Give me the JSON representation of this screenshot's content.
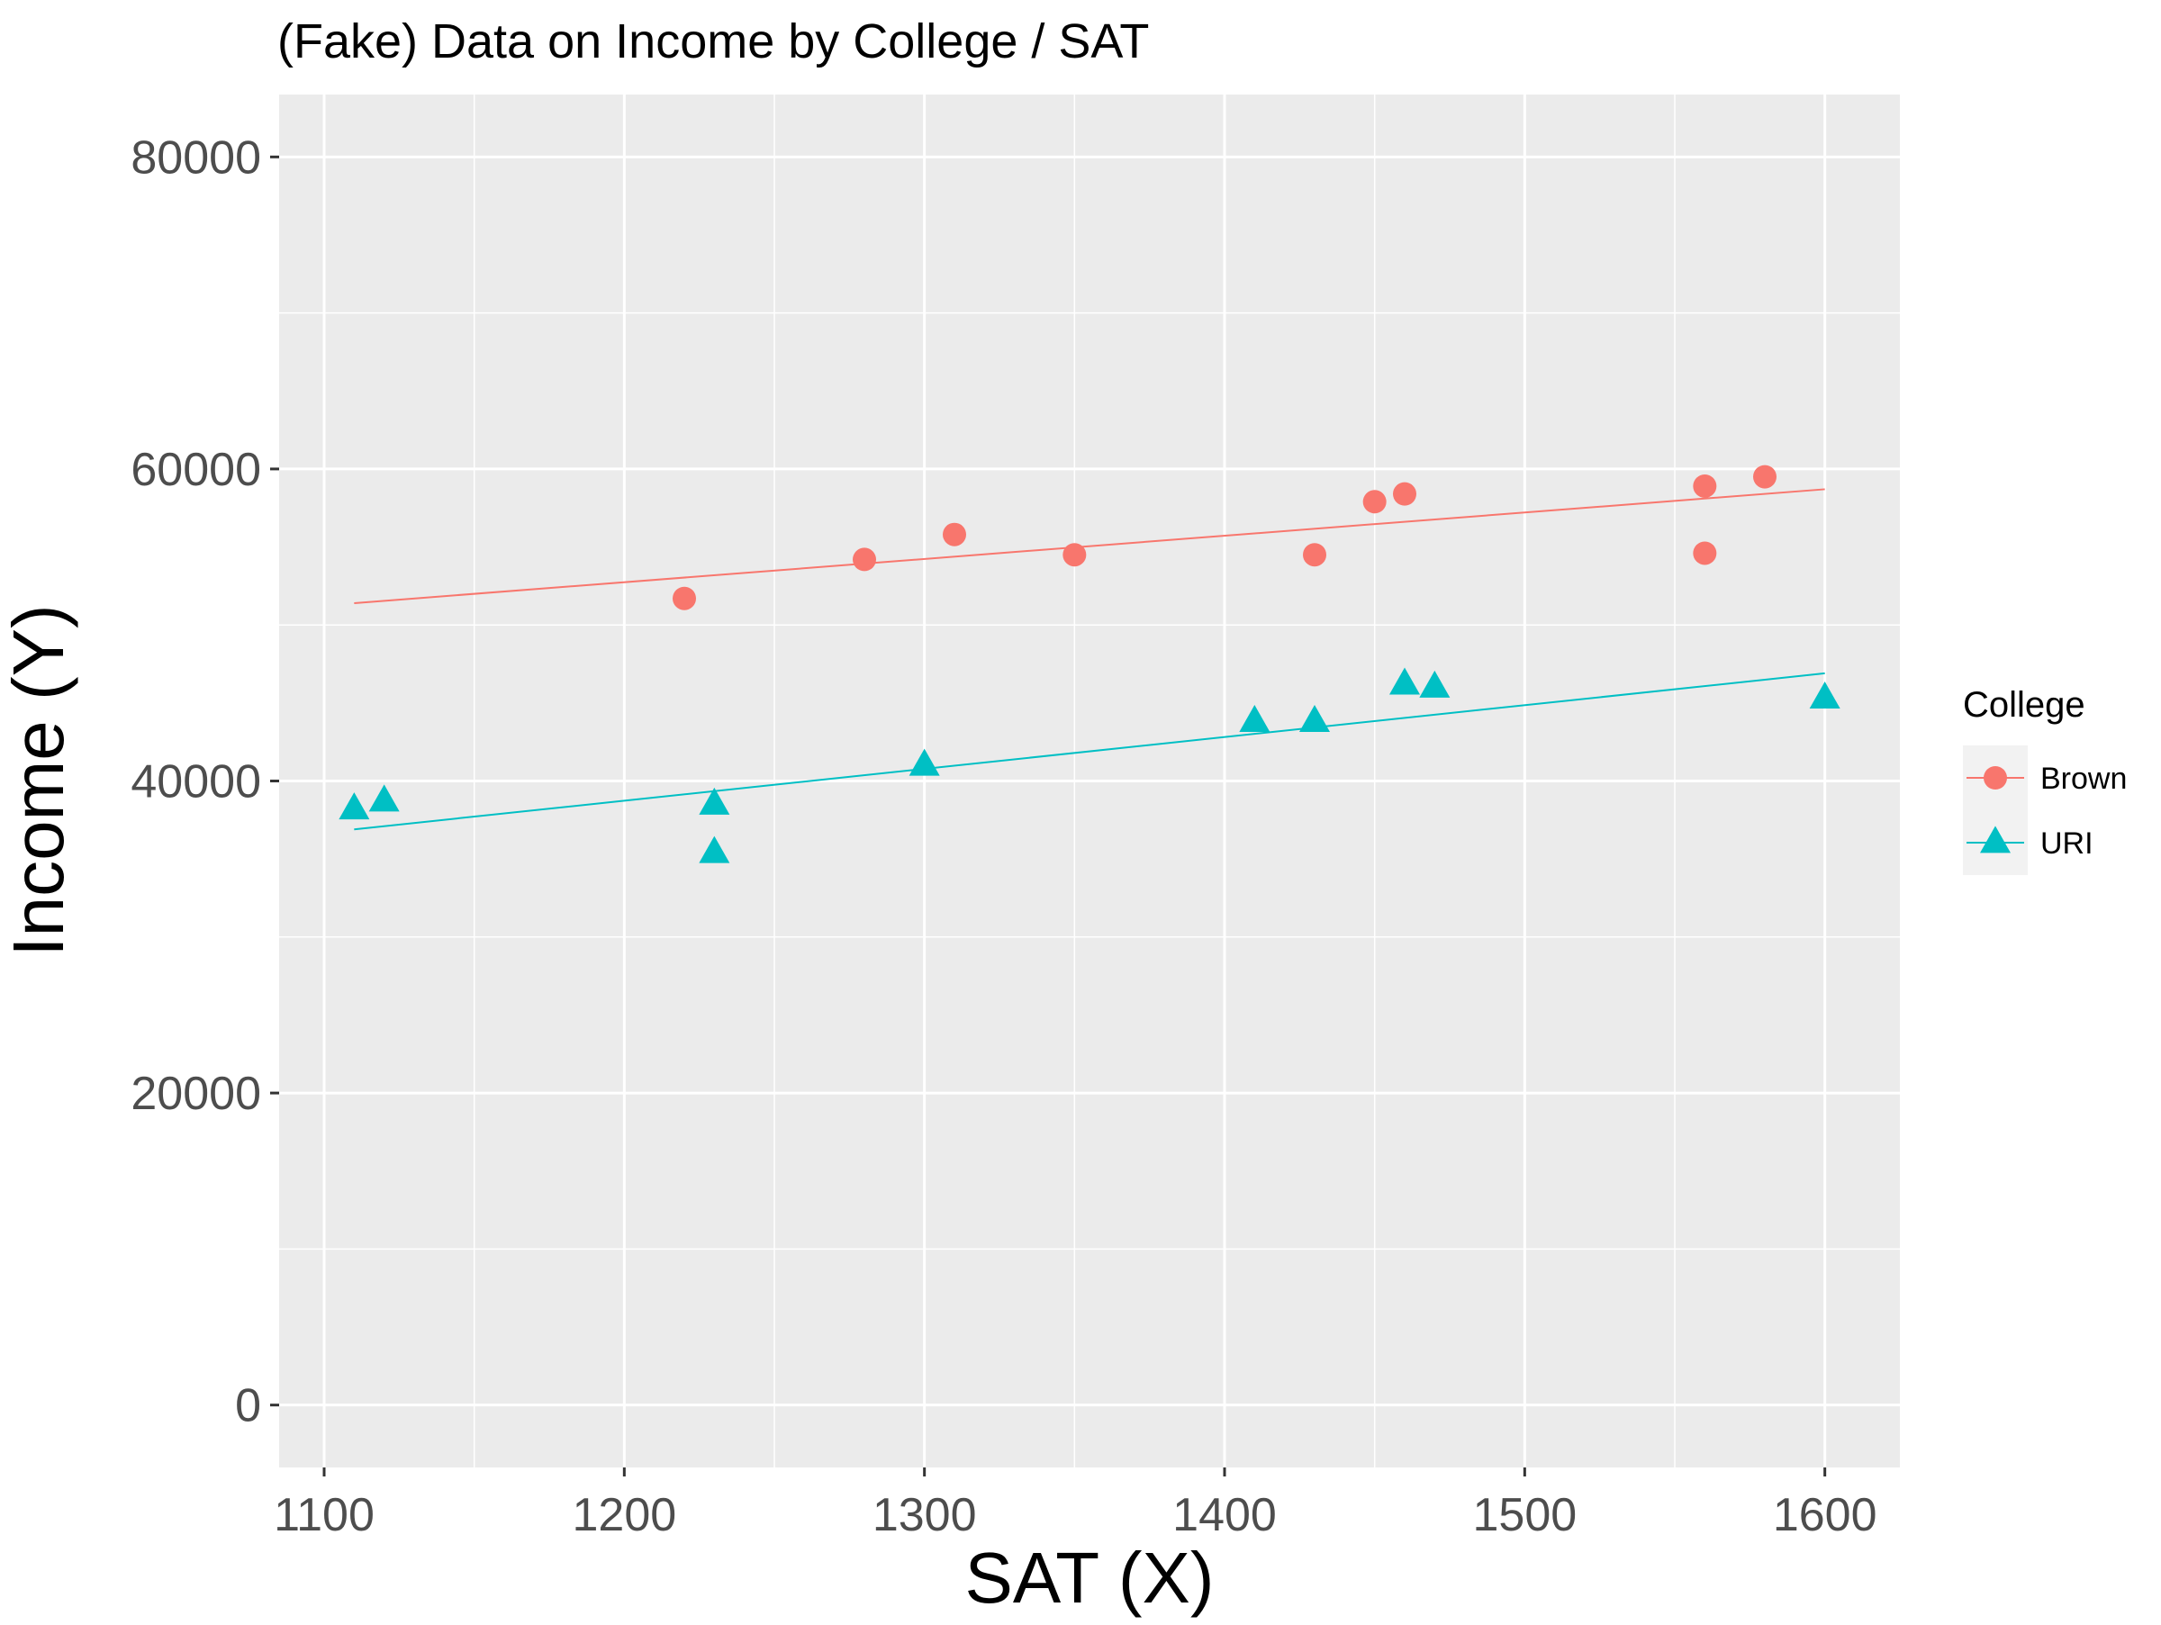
{
  "chart_data": {
    "type": "scatter",
    "title": "(Fake) Data on Income by College / SAT",
    "xlabel": "SAT (X)",
    "ylabel": "Income (Y)",
    "xlim": [
      1085,
      1625
    ],
    "ylim": [
      -4000,
      84000
    ],
    "x_ticks": [
      1100,
      1200,
      1300,
      1400,
      1500,
      1600
    ],
    "x_tick_labels": [
      "1100",
      "1200",
      "1300",
      "1400",
      "1500",
      "1600"
    ],
    "y_ticks": [
      0,
      20000,
      40000,
      60000,
      80000
    ],
    "y_tick_labels": [
      "0",
      "20000",
      "40000",
      "60000",
      "80000"
    ],
    "grid": true,
    "legend": {
      "title": "College",
      "position": "right"
    },
    "series": [
      {
        "name": "Brown",
        "color": "#F8766D",
        "marker": "circle",
        "points": [
          {
            "x": 1220,
            "y": 51700
          },
          {
            "x": 1280,
            "y": 54200
          },
          {
            "x": 1310,
            "y": 55800
          },
          {
            "x": 1350,
            "y": 54500
          },
          {
            "x": 1430,
            "y": 54500
          },
          {
            "x": 1450,
            "y": 57900
          },
          {
            "x": 1460,
            "y": 58400
          },
          {
            "x": 1560,
            "y": 58900
          },
          {
            "x": 1560,
            "y": 54600
          },
          {
            "x": 1580,
            "y": 59500
          }
        ],
        "fit": {
          "x": [
            1110,
            1600
          ],
          "y": [
            51400,
            58700
          ]
        }
      },
      {
        "name": "URI",
        "color": "#00BFC4",
        "marker": "triangle",
        "points": [
          {
            "x": 1110,
            "y": 38200
          },
          {
            "x": 1120,
            "y": 38700
          },
          {
            "x": 1230,
            "y": 38500
          },
          {
            "x": 1230,
            "y": 35400
          },
          {
            "x": 1300,
            "y": 41000
          },
          {
            "x": 1410,
            "y": 43800
          },
          {
            "x": 1430,
            "y": 43800
          },
          {
            "x": 1460,
            "y": 46200
          },
          {
            "x": 1470,
            "y": 46000
          },
          {
            "x": 1600,
            "y": 45300
          }
        ],
        "fit": {
          "x": [
            1110,
            1600
          ],
          "y": [
            36900,
            46900
          ]
        }
      }
    ]
  },
  "colors": {
    "panel_background": "#EBEBEB",
    "grid_major": "#FFFFFF",
    "axis_text": "#4D4D4D",
    "axis_title": "#000000"
  }
}
